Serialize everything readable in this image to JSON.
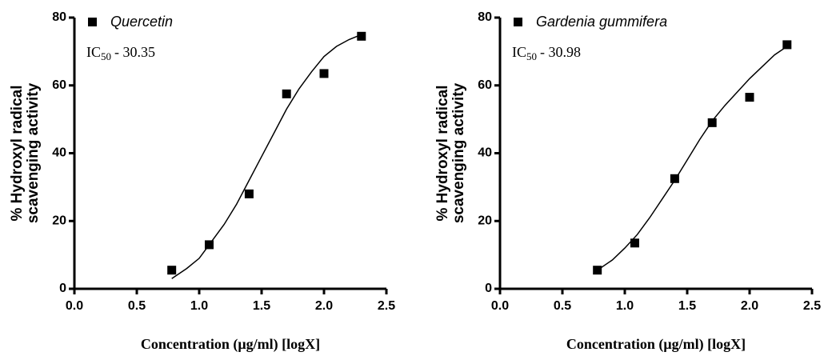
{
  "chart_data": [
    {
      "type": "scatter",
      "series": [
        {
          "name": "Quercetin",
          "color": "#000000",
          "x": [
            0.78,
            1.08,
            1.4,
            1.7,
            2.0,
            2.3
          ],
          "values": [
            5.5,
            13,
            28,
            57.5,
            63.5,
            74.5
          ]
        }
      ],
      "curve": {
        "x": [
          0.78,
          0.9,
          1.0,
          1.1,
          1.2,
          1.3,
          1.4,
          1.5,
          1.6,
          1.7,
          1.8,
          1.9,
          2.0,
          2.1,
          2.2,
          2.3
        ],
        "values": [
          3,
          6,
          9,
          14,
          19,
          25,
          32,
          39,
          46,
          53,
          59,
          64,
          68.5,
          71.5,
          73.5,
          75
        ]
      },
      "annotation": {
        "prefix": "IC",
        "subscript": "50",
        "text": "- 30.35"
      },
      "xlabel": "Concentration (μg/ml) [logX]",
      "ylabel": [
        "% Hydroxyl radical",
        "scavenging activity"
      ],
      "xlim": [
        0,
        2.5
      ],
      "ylim": [
        0,
        80
      ],
      "xticks": [
        {
          "value": 0,
          "label": "0.0"
        },
        0.5,
        {
          "value": 1,
          "label": "1.0"
        },
        1.5,
        {
          "value": 2,
          "label": "2.0"
        },
        2.5
      ],
      "yticks": [
        0,
        20,
        40,
        60,
        80
      ]
    },
    {
      "type": "scatter",
      "series": [
        {
          "name": "Gardenia gummifera",
          "color": "#000000",
          "x": [
            0.78,
            1.08,
            1.4,
            1.7,
            2.0,
            2.3
          ],
          "values": [
            5.5,
            13.5,
            32.5,
            49,
            56.5,
            72
          ]
        }
      ],
      "curve": {
        "x": [
          0.78,
          0.9,
          1.0,
          1.1,
          1.2,
          1.3,
          1.4,
          1.5,
          1.6,
          1.7,
          1.8,
          1.9,
          2.0,
          2.1,
          2.2,
          2.3
        ],
        "values": [
          5.5,
          8.5,
          12,
          16,
          21,
          26.5,
          32,
          38,
          44,
          49.5,
          54,
          58,
          62,
          65.5,
          69,
          71.5
        ]
      },
      "annotation": {
        "prefix": "IC",
        "subscript": "50",
        "text": "- 30.98"
      },
      "xlabel": "Concentration (μg/ml) [logX]",
      "ylabel": [
        "% Hydroxyl radical",
        "scavenging activity"
      ],
      "xlim": [
        0,
        2.5
      ],
      "ylim": [
        0,
        80
      ],
      "xticks": [
        {
          "value": 0,
          "label": "0.0"
        },
        0.5,
        {
          "value": 1,
          "label": "1.0"
        },
        1.5,
        {
          "value": 2,
          "label": "2.0"
        },
        2.5
      ],
      "yticks": [
        0,
        20,
        40,
        60,
        80
      ]
    }
  ]
}
